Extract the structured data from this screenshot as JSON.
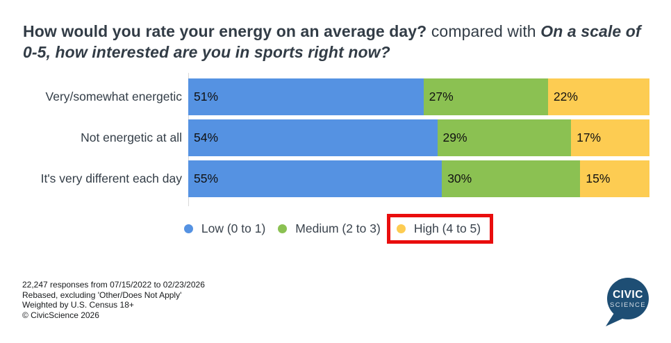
{
  "title": {
    "question_main": "How would you rate your energy on an average day?",
    "connector": "compared with",
    "question_compare": "On a scale of 0-5, how interested are you in sports right now?"
  },
  "chart_data": {
    "type": "bar",
    "orientation": "horizontal",
    "stacked": true,
    "categories": [
      "Very/somewhat energetic",
      "Not energetic at all",
      "It's very different each day"
    ],
    "series": [
      {
        "name": "Low (0 to 1)",
        "color": "#5592e2",
        "values": [
          51,
          54,
          55
        ]
      },
      {
        "name": "Medium (2 to 3)",
        "color": "#8bc152",
        "values": [
          27,
          29,
          30
        ]
      },
      {
        "name": "High (4 to 5)",
        "color": "#fdcc52",
        "values": [
          22,
          17,
          15
        ]
      }
    ],
    "value_suffix": "%",
    "xlim": [
      0,
      100
    ],
    "grid": false,
    "legend_position": "bottom",
    "highlighted_legend_item": "High (4 to 5)",
    "highlight_color": "#e90d0d"
  },
  "footer": {
    "lines": [
      "22,247 responses from 07/15/2022 to 02/23/2026",
      "Rebased, excluding 'Other/Does Not Apply'",
      "Weighted by U.S. Census 18+",
      "© CivicScience 2026"
    ]
  },
  "logo": {
    "line1": "CIVIC",
    "line2": "SCIENCE",
    "color": "#1e4e74"
  }
}
